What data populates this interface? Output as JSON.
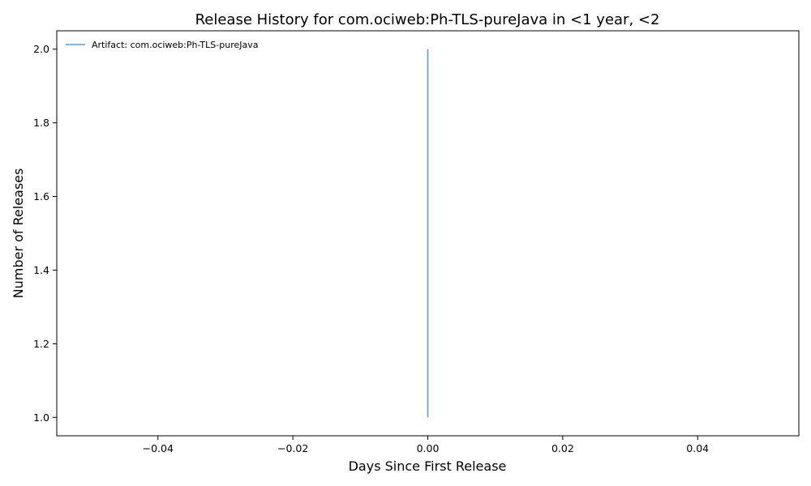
{
  "chart_data": {
    "type": "line",
    "title": "Release History for com.ociweb:Ph-TLS-pureJava in <1 year, <2",
    "xlabel": "Days Since First Release",
    "ylabel": "Number of Releases",
    "xlim": [
      -0.055,
      0.055
    ],
    "ylim": [
      0.95,
      2.05
    ],
    "xticks": [
      -0.04,
      -0.02,
      0.0,
      0.02,
      0.04
    ],
    "xtick_labels": [
      "−0.04",
      "−0.02",
      "0.00",
      "0.02",
      "0.04"
    ],
    "yticks": [
      1.0,
      1.2,
      1.4,
      1.6,
      1.8,
      2.0
    ],
    "ytick_labels": [
      "1.0",
      "1.2",
      "1.4",
      "1.6",
      "1.8",
      "2.0"
    ],
    "grid": false,
    "legend_position": "top-left",
    "series": [
      {
        "name": "Artifact: com.ociweb:Ph-TLS-pureJava",
        "color": "#5b9ec9",
        "x": [
          0,
          0
        ],
        "y": [
          1,
          2
        ]
      }
    ]
  }
}
